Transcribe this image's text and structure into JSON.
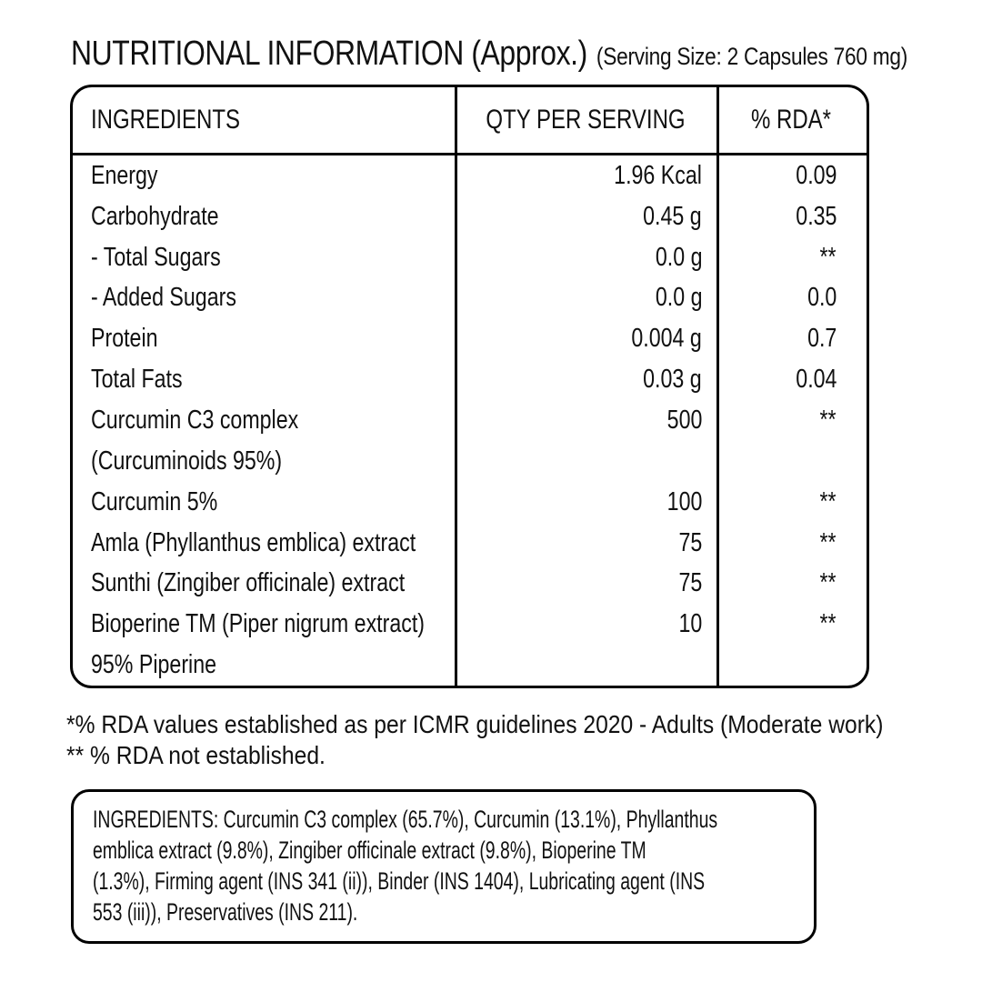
{
  "title": {
    "main": "NUTRITIONAL INFORMATION (Approx.)",
    "serving": "(Serving Size: 2 Capsules 760 mg)"
  },
  "table": {
    "headers": [
      "INGREDIENTS",
      "QTY PER SERVING",
      "% RDA*"
    ],
    "rows": [
      {
        "label": "Energy",
        "qty": "1.96 Kcal",
        "rda": "0.09"
      },
      {
        "label": "Carbohydrate",
        "qty": "0.45 g",
        "rda": "0.35"
      },
      {
        "label": "- Total Sugars",
        "qty": "0.0 g",
        "rda": "**"
      },
      {
        "label": "- Added Sugars",
        "qty": "0.0 g",
        "rda": "0.0"
      },
      {
        "label": "Protein",
        "qty": "0.004 g",
        "rda": "0.7"
      },
      {
        "label": "Total Fats",
        "qty": "0.03 g",
        "rda": "0.04"
      },
      {
        "label": "Curcumin C3 complex",
        "qty": "500",
        "rda": "**"
      },
      {
        "label": "(Curcuminoids 95%)",
        "qty": "",
        "rda": ""
      },
      {
        "label": "Curcumin 5%",
        "qty": "100",
        "rda": "**"
      },
      {
        "label": "Amla (Phyllanthus emblica) extract",
        "qty": "75",
        "rda": "**"
      },
      {
        "label": "Sunthi (Zingiber officinale) extract",
        "qty": "75",
        "rda": "**"
      },
      {
        "label": "Bioperine TM (Piper nigrum extract)",
        "qty": "10",
        "rda": "**"
      },
      {
        "label": "95% Piperine",
        "qty": "",
        "rda": ""
      }
    ]
  },
  "footnotes": [
    "*% RDA values established as per ICMR guidelines 2020 - Adults (Moderate work)",
    "** % RDA not established."
  ],
  "ingredients_box": {
    "lines": [
      "INGREDIENTS: Curcumin C3 complex (65.7%), Curcumin (13.1%), Phyllanthus",
      "emblica extract (9.8%), Zingiber officinale extract (9.8%), Bioperine TM",
      "(1.3%), Firming agent (INS 341 (ii)), Binder (INS 1404), Lubricating agent (INS",
      "553 (iii)), Preservatives (INS 211)."
    ]
  },
  "colors": {
    "background": "#ffffff",
    "text": "#111111",
    "border": "#000000"
  }
}
